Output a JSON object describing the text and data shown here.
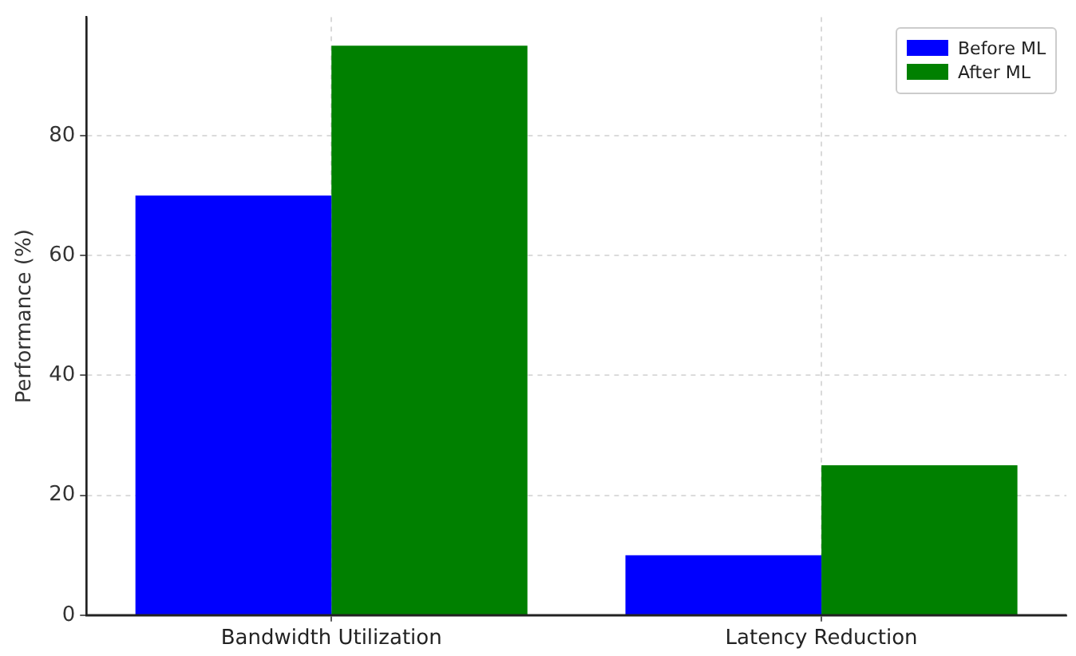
{
  "chart_data": {
    "type": "bar",
    "categories": [
      "Bandwidth Utilization",
      "Latency Reduction"
    ],
    "series": [
      {
        "name": "Before ML",
        "color": "#0000ff",
        "values": [
          70,
          10
        ]
      },
      {
        "name": "After ML",
        "color": "#008000",
        "values": [
          95,
          25
        ]
      }
    ],
    "ylabel": "Performance (%)",
    "ylim": [
      0,
      99.75
    ],
    "yticks": [
      0,
      20,
      40,
      60,
      80
    ],
    "grid": true,
    "legend": "top right"
  }
}
